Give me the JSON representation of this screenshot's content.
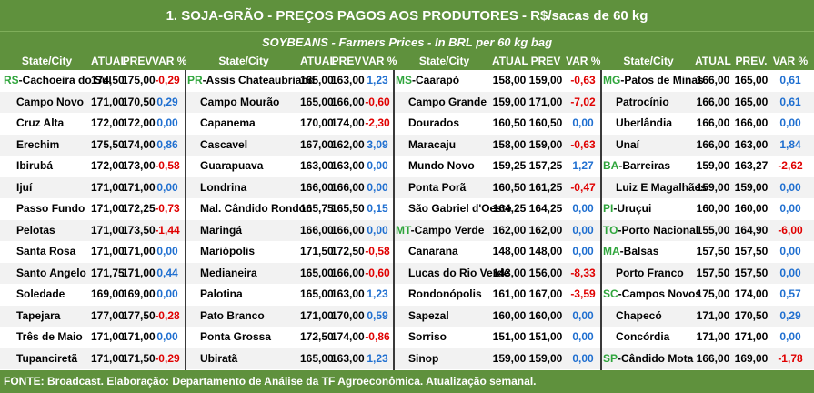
{
  "title": "1. SOJA-GRÃO - PREÇOS PAGOS AOS PRODUTORES - R$/sacas de 60 kg",
  "subtitle": "SOYBEANS - Farmers Prices - In BRL per 60 kg bag",
  "footer": "FONTE: Broadcast. Elaboração: Departamento de Análise da TF Agroeconômica. Atualização semanal.",
  "colors": {
    "header_bg": "#5f913d",
    "state_code": "#2fa53c",
    "negative": "#e00000",
    "positive": "#1f6fd0"
  },
  "groups": [
    {
      "headers": {
        "city": "State/City",
        "atual": "ATUAL",
        "prev": "PREV",
        "var": "VAR %"
      },
      "rows": [
        {
          "state": "RS",
          "city": "Cachoeira do Sul",
          "atual": "174,50",
          "prev": "175,00",
          "var": "-0,29"
        },
        {
          "state": "",
          "city": "Campo Novo",
          "atual": "171,00",
          "prev": "170,50",
          "var": "0,29"
        },
        {
          "state": "",
          "city": "Cruz Alta",
          "atual": "172,00",
          "prev": "172,00",
          "var": "0,00"
        },
        {
          "state": "",
          "city": "Erechim",
          "atual": "175,50",
          "prev": "174,00",
          "var": "0,86"
        },
        {
          "state": "",
          "city": "Ibirubá",
          "atual": "172,00",
          "prev": "173,00",
          "var": "-0,58"
        },
        {
          "state": "",
          "city": "Ijuí",
          "atual": "171,00",
          "prev": "171,00",
          "var": "0,00"
        },
        {
          "state": "",
          "city": "Passo Fundo",
          "atual": "171,00",
          "prev": "172,25",
          "var": "-0,73"
        },
        {
          "state": "",
          "city": "Pelotas",
          "atual": "171,00",
          "prev": "173,50",
          "var": "-1,44"
        },
        {
          "state": "",
          "city": "Santa Rosa",
          "atual": "171,00",
          "prev": "171,00",
          "var": "0,00"
        },
        {
          "state": "",
          "city": "Santo Angelo",
          "atual": "171,75",
          "prev": "171,00",
          "var": "0,44"
        },
        {
          "state": "",
          "city": "Soledade",
          "atual": "169,00",
          "prev": "169,00",
          "var": "0,00"
        },
        {
          "state": "",
          "city": "Tapejara",
          "atual": "177,00",
          "prev": "177,50",
          "var": "-0,28"
        },
        {
          "state": "",
          "city": "Três de Maio",
          "atual": "171,00",
          "prev": "171,00",
          "var": "0,00"
        },
        {
          "state": "",
          "city": "Tupanciretã",
          "atual": "171,00",
          "prev": "171,50",
          "var": "-0,29"
        }
      ]
    },
    {
      "headers": {
        "city": "State/City",
        "atual": "ATUAL",
        "prev": "PREV",
        "var": "VAR %"
      },
      "rows": [
        {
          "state": "PR",
          "city": "Assis Chateaubriand",
          "atual": "165,00",
          "prev": "163,00",
          "var": "1,23"
        },
        {
          "state": "",
          "city": "Campo Mourão",
          "atual": "165,00",
          "prev": "166,00",
          "var": "-0,60"
        },
        {
          "state": "",
          "city": "Capanema",
          "atual": "170,00",
          "prev": "174,00",
          "var": "-2,30"
        },
        {
          "state": "",
          "city": "Cascavel",
          "atual": "167,00",
          "prev": "162,00",
          "var": "3,09"
        },
        {
          "state": "",
          "city": "Guarapuava",
          "atual": "163,00",
          "prev": "163,00",
          "var": "0,00"
        },
        {
          "state": "",
          "city": "Londrina",
          "atual": "166,00",
          "prev": "166,00",
          "var": "0,00"
        },
        {
          "state": "",
          "city": "Mal. Cândido Rondon",
          "atual": "165,75",
          "prev": "165,50",
          "var": "0,15"
        },
        {
          "state": "",
          "city": "Maringá",
          "atual": "166,00",
          "prev": "166,00",
          "var": "0,00"
        },
        {
          "state": "",
          "city": "Mariópolis",
          "atual": "171,50",
          "prev": "172,50",
          "var": "-0,58"
        },
        {
          "state": "",
          "city": "Medianeira",
          "atual": "165,00",
          "prev": "166,00",
          "var": "-0,60"
        },
        {
          "state": "",
          "city": "Palotina",
          "atual": "165,00",
          "prev": "163,00",
          "var": "1,23"
        },
        {
          "state": "",
          "city": "Pato Branco",
          "atual": "171,00",
          "prev": "170,00",
          "var": "0,59"
        },
        {
          "state": "",
          "city": "Ponta Grossa",
          "atual": "172,50",
          "prev": "174,00",
          "var": "-0,86"
        },
        {
          "state": "",
          "city": "Ubiratã",
          "atual": "165,00",
          "prev": "163,00",
          "var": "1,23"
        }
      ]
    },
    {
      "headers": {
        "city": "State/City",
        "atual": "ATUAL",
        "prev": "PREV",
        "var": "VAR %"
      },
      "rows": [
        {
          "state": "MS",
          "city": "Caarapó",
          "atual": "158,00",
          "prev": "159,00",
          "var": "-0,63"
        },
        {
          "state": "",
          "city": "Campo Grande",
          "atual": "159,00",
          "prev": "171,00",
          "var": "-7,02"
        },
        {
          "state": "",
          "city": "Dourados",
          "atual": "160,50",
          "prev": "160,50",
          "var": "0,00"
        },
        {
          "state": "",
          "city": "Maracaju",
          "atual": "158,00",
          "prev": "159,00",
          "var": "-0,63"
        },
        {
          "state": "",
          "city": "Mundo Novo",
          "atual": "159,25",
          "prev": "157,25",
          "var": "1,27"
        },
        {
          "state": "",
          "city": "Ponta Porã",
          "atual": "160,50",
          "prev": "161,25",
          "var": "-0,47"
        },
        {
          "state": "",
          "city": "São Gabriel d'Oeste",
          "atual": "164,25",
          "prev": "164,25",
          "var": "0,00"
        },
        {
          "state": "MT",
          "city": "Campo Verde",
          "atual": "162,00",
          "prev": "162,00",
          "var": "0,00"
        },
        {
          "state": "",
          "city": "Canarana",
          "atual": "148,00",
          "prev": "148,00",
          "var": "0,00"
        },
        {
          "state": "",
          "city": "Lucas do Rio Verde",
          "atual": "143,00",
          "prev": "156,00",
          "var": "-8,33"
        },
        {
          "state": "",
          "city": "Rondonópolis",
          "atual": "161,00",
          "prev": "167,00",
          "var": "-3,59"
        },
        {
          "state": "",
          "city": "Sapezal",
          "atual": "160,00",
          "prev": "160,00",
          "var": "0,00"
        },
        {
          "state": "",
          "city": "Sorriso",
          "atual": "151,00",
          "prev": "151,00",
          "var": "0,00"
        },
        {
          "state": "",
          "city": "Sinop",
          "atual": "159,00",
          "prev": "159,00",
          "var": "0,00"
        }
      ]
    },
    {
      "headers": {
        "city": "State/City",
        "atual": "ATUAL",
        "prev": "PREV.",
        "var": "VAR %"
      },
      "rows": [
        {
          "state": "MG",
          "city": "Patos de Minas",
          "atual": "166,00",
          "prev": "165,00",
          "var": "0,61"
        },
        {
          "state": "",
          "city": "Patrocínio",
          "atual": "166,00",
          "prev": "165,00",
          "var": "0,61"
        },
        {
          "state": "",
          "city": "Uberlândia",
          "atual": "166,00",
          "prev": "166,00",
          "var": "0,00"
        },
        {
          "state": "",
          "city": "Unaí",
          "atual": "166,00",
          "prev": "163,00",
          "var": "1,84"
        },
        {
          "state": "BA",
          "city": "Barreiras",
          "atual": "159,00",
          "prev": "163,27",
          "var": "-2,62"
        },
        {
          "state": "",
          "city": "Luiz E Magalhães",
          "atual": "159,00",
          "prev": "159,00",
          "var": "0,00"
        },
        {
          "state": "PI",
          "city": "Uruçui",
          "atual": "160,00",
          "prev": "160,00",
          "var": "0,00"
        },
        {
          "state": "TO",
          "city": "Porto Nacional",
          "atual": "155,00",
          "prev": "164,90",
          "var": "-6,00"
        },
        {
          "state": "MA",
          "city": "Balsas",
          "atual": "157,50",
          "prev": "157,50",
          "var": "0,00"
        },
        {
          "state": "",
          "city": "Porto Franco",
          "atual": "157,50",
          "prev": "157,50",
          "var": "0,00"
        },
        {
          "state": "SC",
          "city": "Campos Novos",
          "atual": "175,00",
          "prev": "174,00",
          "var": "0,57"
        },
        {
          "state": "",
          "city": "Chapecó",
          "atual": "171,00",
          "prev": "170,50",
          "var": "0,29"
        },
        {
          "state": "",
          "city": "Concórdia",
          "atual": "171,00",
          "prev": "171,00",
          "var": "0,00"
        },
        {
          "state": "SP",
          "city": "Cândido Mota",
          "atual": "166,00",
          "prev": "169,00",
          "var": "-1,78"
        }
      ]
    }
  ]
}
